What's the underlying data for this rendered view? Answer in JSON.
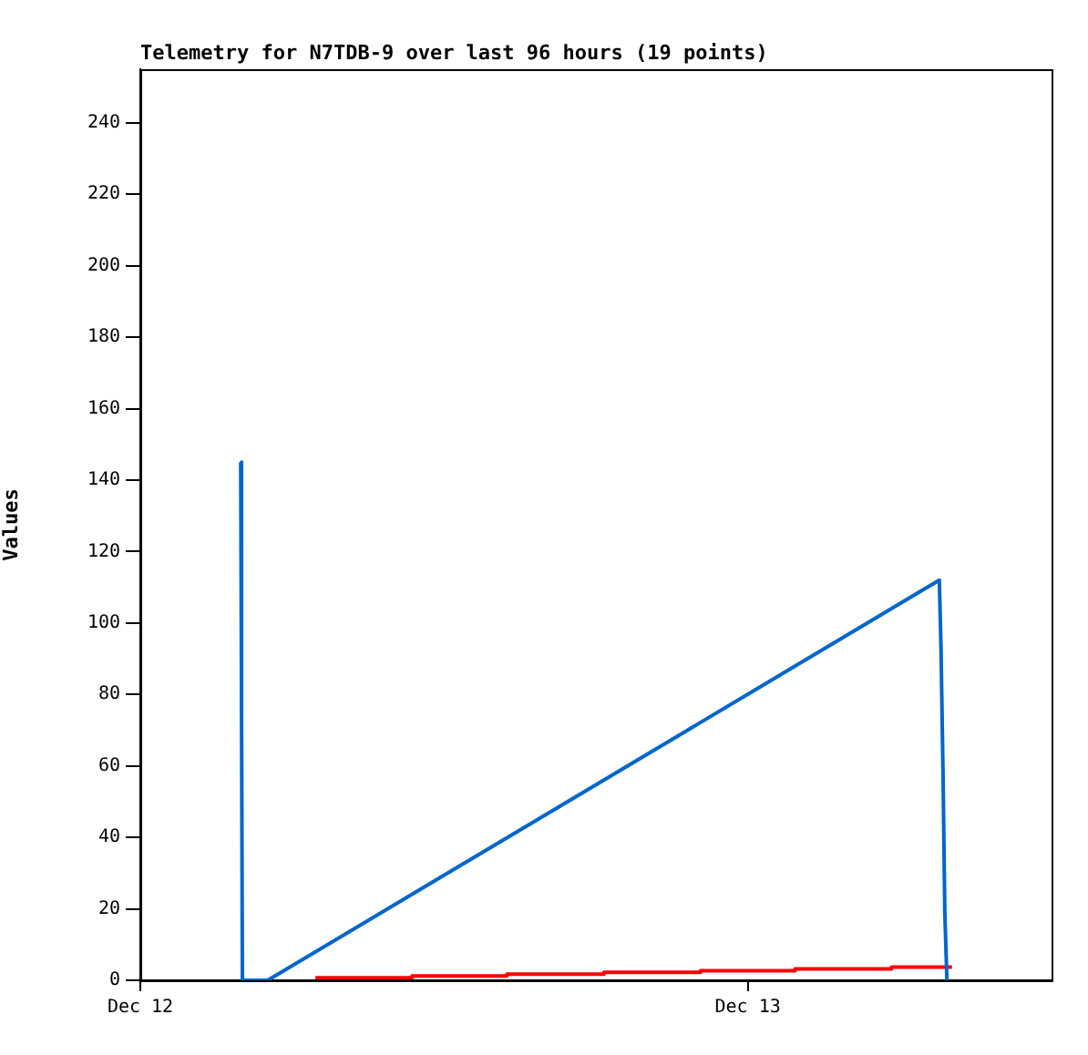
{
  "chart_data": {
    "type": "line",
    "title": "Telemetry for N7TDB-9 over last 96 hours (19 points)",
    "ylabel": "Values",
    "xlim": [
      "--12-12",
      "--12-13T12:00"
    ],
    "xticks": [
      {
        "value": "--12-12",
        "label": "Dec 12"
      },
      {
        "value": "--12-13",
        "label": "Dec 13"
      }
    ],
    "ylim": [
      0,
      255
    ],
    "yticks": [
      0,
      20,
      40,
      60,
      80,
      100,
      120,
      140,
      160,
      180,
      200,
      220,
      240
    ],
    "grid": false,
    "legend": false,
    "marker": "none",
    "line_style": "solid",
    "series": [
      {
        "color": "#0066cc",
        "x": [
          "--12-12T03:58",
          "--12-12T04:00",
          "--12-12T04:02",
          "--12-12T05:02",
          "--12-13T07:34",
          "--12-13T07:38",
          "--12-13T07:43",
          "--12-13T07:47",
          "--12-13T07:52"
        ],
        "values": [
          145,
          72,
          0,
          0,
          112,
          93,
          56,
          19,
          0
        ]
      },
      {
        "type": "step",
        "color": "#ff0000",
        "x": [
          "--12-12T06:55",
          "--12-12T10:44",
          "--12-12T14:29",
          "--12-12T18:19",
          "--12-12T22:08",
          "--12-13T01:52",
          "--12-13T05:41",
          "--12-13T08:04"
        ],
        "values": [
          0.7,
          1.2,
          1.7,
          2.2,
          2.7,
          3.2,
          3.7,
          3.7
        ]
      }
    ]
  }
}
